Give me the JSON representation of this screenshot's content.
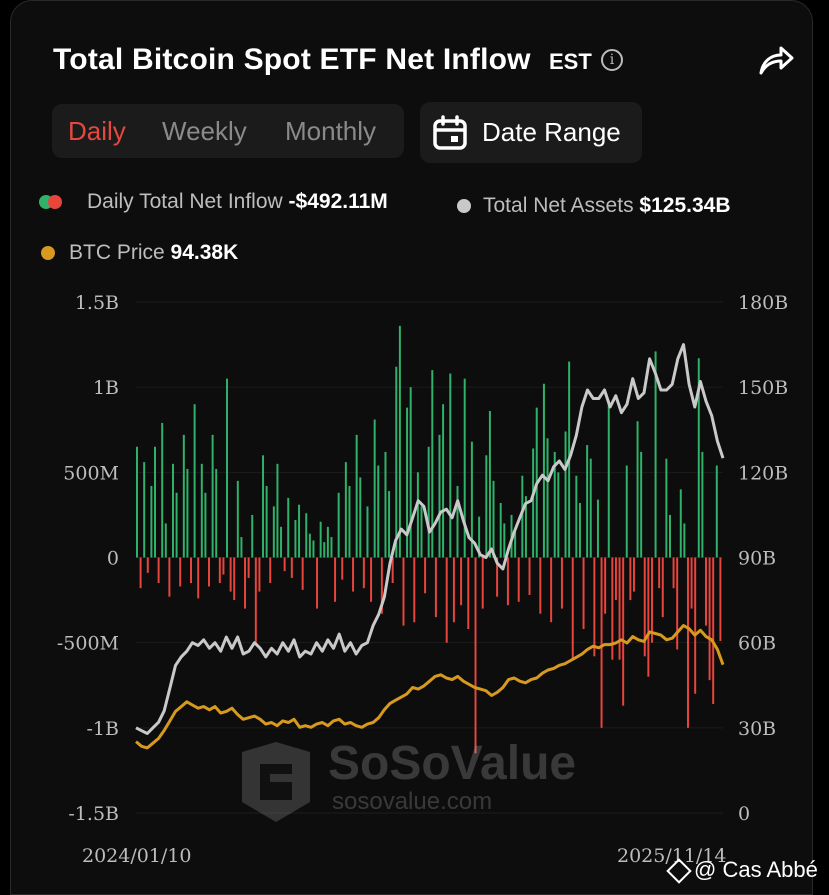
{
  "header": {
    "title": "Total Bitcoin Spot ETF Net Inflow",
    "timezone": "EST",
    "info_glyph": "i"
  },
  "tabs": [
    {
      "label": "Daily",
      "active": true
    },
    {
      "label": "Weekly",
      "active": false
    },
    {
      "label": "Monthly",
      "active": false
    }
  ],
  "date_range_label": "Date Range",
  "legend": {
    "inflow_label": "Daily Total Net Inflow",
    "inflow_value": "-$492.11M",
    "assets_label": "Total Net Assets",
    "assets_value": "$125.34B",
    "price_label": "BTC Price",
    "price_value": "94.38K"
  },
  "watermark": {
    "brand": "SoSoValue",
    "url": "sosovalue.com"
  },
  "credit": "@ Cas Abbé",
  "colors": {
    "positive": "#2fb36b",
    "negative": "#e8453c",
    "assets_line": "#c9c9c9",
    "price_line": "#d89a1e",
    "active_tab": "#e5483f"
  },
  "chart_data": {
    "type": "bar",
    "title": "Total Bitcoin Spot ETF Net Inflow",
    "x_start": "2024/01/10",
    "x_end": "2025/11/14",
    "x_tick_labels": [
      "2024/01/10",
      "2025/11/14"
    ],
    "left_axis": {
      "ylim": [
        -1.5,
        1.5
      ],
      "unit": "B USD",
      "tick_labels": [
        "1.5B",
        "1B",
        "500M",
        "0",
        "-500M",
        "-1B",
        "-1.5B"
      ]
    },
    "right_axis": {
      "ylim": [
        0,
        180
      ],
      "unit": "B USD",
      "tick_labels": [
        "180B",
        "150B",
        "120B",
        "90B",
        "60B",
        "30B",
        "0"
      ]
    },
    "grid": true,
    "series": [
      {
        "name": "Daily Total Net Inflow",
        "type": "bar",
        "axis": "left",
        "unit": "M USD",
        "values": [
          650,
          -180,
          560,
          -90,
          420,
          650,
          -150,
          790,
          200,
          -230,
          550,
          380,
          -170,
          720,
          520,
          -150,
          900,
          -240,
          550,
          380,
          -170,
          720,
          520,
          -150,
          -100,
          1050,
          -200,
          -250,
          450,
          120,
          -300,
          -120,
          250,
          -500,
          -200,
          600,
          420,
          -150,
          300,
          550,
          180,
          -80,
          350,
          -120,
          220,
          310,
          -190,
          260,
          140,
          100,
          -300,
          210,
          90,
          180,
          120,
          -260,
          380,
          -130,
          560,
          420,
          -200,
          720,
          470,
          -180,
          300,
          -260,
          810,
          540,
          -330,
          620,
          390,
          -150,
          1120,
          1360,
          -400,
          880,
          1000,
          -380,
          500,
          300,
          -210,
          650,
          1100,
          -350,
          720,
          900,
          -500,
          1080,
          -380,
          420,
          -280,
          1050,
          -420,
          680,
          -1150,
          240,
          -300,
          600,
          860,
          450,
          -230,
          320,
          200,
          -280,
          250,
          150,
          -260,
          480,
          360,
          -220,
          640,
          880,
          -330,
          1020,
          700,
          -380,
          620,
          500,
          -300,
          740,
          1150,
          -600,
          480,
          320,
          -420,
          660,
          580,
          -580,
          340,
          -1000,
          -330,
          920,
          -600,
          -250,
          -600,
          -870,
          540,
          -250,
          -200,
          800,
          620,
          -580,
          -700,
          -500,
          1210,
          -180,
          -350,
          580,
          250,
          -180,
          -540,
          400,
          200,
          -1000,
          -300,
          -800,
          1170,
          620,
          -400,
          -720,
          -860,
          540,
          -490
        ],
        "note": "approximate daily bars read from chart"
      },
      {
        "name": "Total Net Assets",
        "type": "line",
        "axis": "right",
        "unit": "B USD",
        "values": [
          30,
          29,
          28,
          30,
          32,
          36,
          44,
          52,
          55,
          57,
          60,
          59,
          61,
          58,
          60,
          57,
          62,
          58,
          62,
          56,
          57,
          60,
          58,
          55,
          58,
          56,
          60,
          57,
          61,
          55,
          57,
          56,
          60,
          57,
          61,
          58,
          63,
          57,
          60,
          56,
          59,
          60,
          66,
          70,
          76,
          88,
          96,
          100,
          98,
          104,
          110,
          108,
          99,
          102,
          106,
          107,
          104,
          110,
          103,
          97,
          95,
          91,
          90,
          93,
          88,
          86,
          93,
          99,
          104,
          109,
          110,
          116,
          119,
          117,
          122,
          124,
          121,
          126,
          133,
          143,
          149,
          146,
          146,
          149,
          143,
          147,
          141,
          144,
          153,
          146,
          148,
          160,
          155,
          149,
          149,
          151,
          160,
          165,
          151,
          143,
          152,
          145,
          140,
          131,
          125
        ]
      },
      {
        "name": "BTC Price",
        "type": "line",
        "axis": "right",
        "unit": "K USD",
        "values": [
          46,
          43,
          42,
          45,
          48,
          53,
          59,
          65,
          68,
          71,
          69,
          67,
          68,
          66,
          68,
          64,
          65,
          67,
          63,
          60,
          61,
          62,
          60,
          57,
          58,
          56,
          59,
          58,
          60,
          55,
          56,
          55,
          57,
          58,
          56,
          59,
          60,
          57,
          58,
          56,
          55,
          57,
          58,
          61,
          66,
          70,
          72,
          74,
          76,
          80,
          79,
          81,
          84,
          87,
          88,
          86,
          85,
          87,
          84,
          82,
          80,
          79,
          78,
          75,
          77,
          80,
          85,
          86,
          84,
          83,
          85,
          86,
          89,
          91,
          92,
          94,
          95,
          97,
          99,
          101,
          104,
          106,
          105,
          107,
          107,
          108,
          110,
          108,
          112,
          110,
          109,
          115,
          114,
          113,
          110,
          111,
          115,
          119,
          117,
          113,
          116,
          112,
          110,
          104,
          94.38
        ]
      }
    ]
  }
}
